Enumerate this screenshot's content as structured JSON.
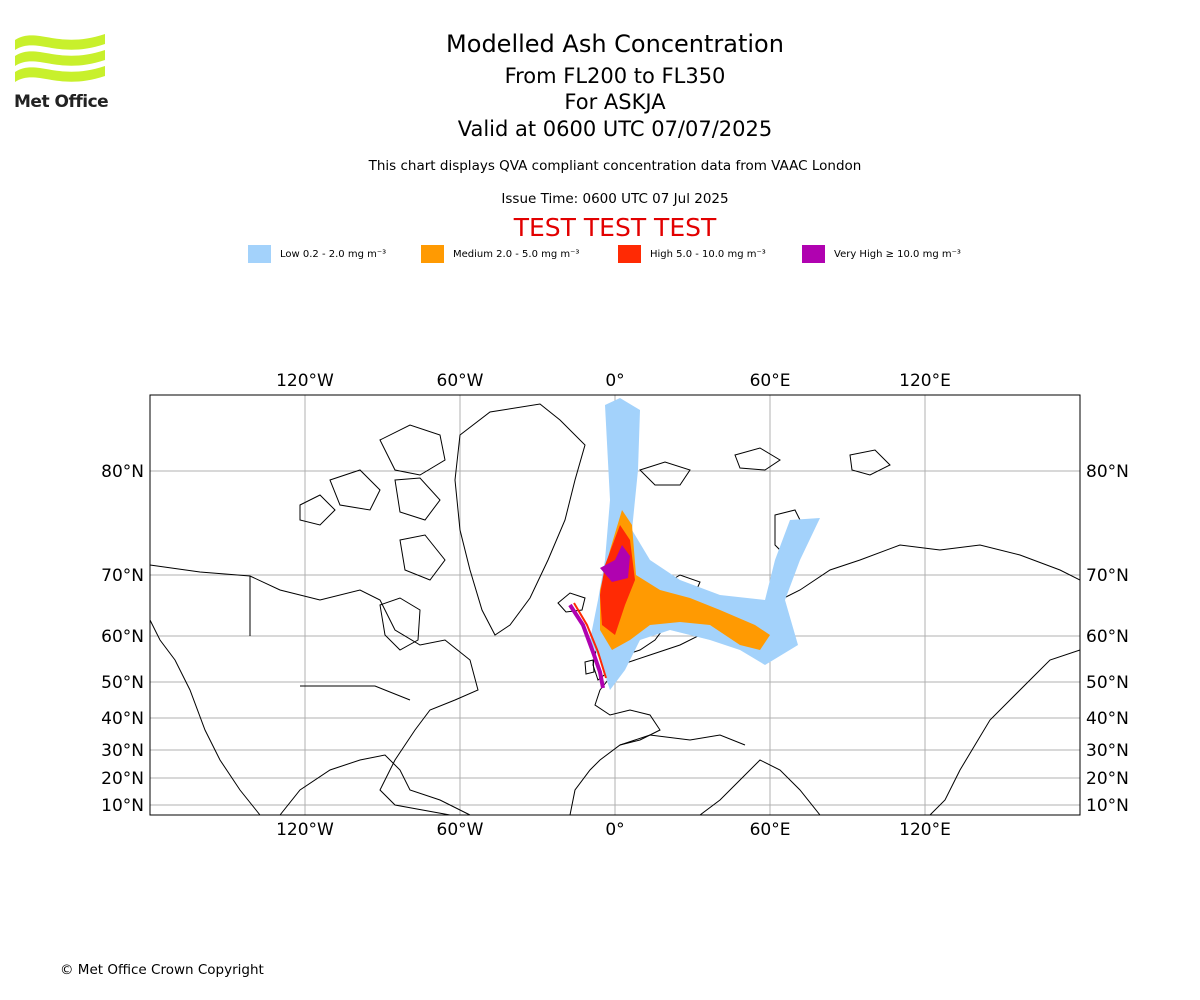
{
  "header": {
    "logo_text": "Met Office",
    "title": "Modelled Ash Concentration",
    "subtitle_levels": "From FL200 to FL350",
    "subtitle_volcano": "For ASKJA",
    "valid_time": "Valid at 0600 UTC 07/07/2025",
    "description": "This chart displays QVA compliant concentration data from VAAC London",
    "issue_time": "Issue Time: 0600 UTC 07 Jul 2025",
    "test_banner": "TEST TEST TEST"
  },
  "legend": [
    {
      "label": "Low 0.2 - 2.0 mg m⁻³",
      "color": "#a3d2fb"
    },
    {
      "label": "Medium 2.0 - 5.0 mg m⁻³",
      "color": "#ff9a02"
    },
    {
      "label": "High 5.0 - 10.0 mg m⁻³",
      "color": "#ff2a04"
    },
    {
      "label": "Very High ≥ 10.0 mg m⁻³",
      "color": "#b002b0"
    }
  ],
  "map": {
    "lon_ticks": [
      "120°W",
      "60°W",
      "0°",
      "60°E",
      "120°E"
    ],
    "lat_ticks": [
      "80°N",
      "70°N",
      "60°N",
      "50°N",
      "40°N",
      "30°N",
      "20°N",
      "10°N"
    ],
    "colors": {
      "land_outline": "#000000",
      "gridline": "#b0b0b0",
      "logo": "#c8f02c"
    }
  },
  "footer": {
    "copyright": "© Met Office Crown Copyright"
  }
}
